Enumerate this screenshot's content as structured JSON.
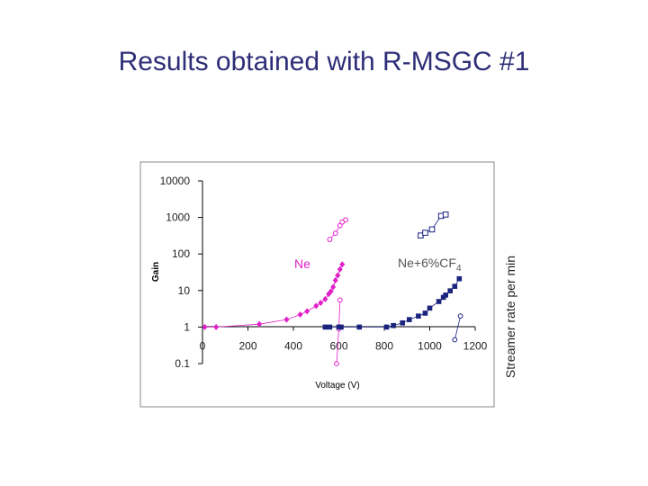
{
  "slide": {
    "title": "Results obtained with R-MSGC #1"
  },
  "chart_data": {
    "type": "scatter",
    "title": "",
    "xlabel": "Voltage (V)",
    "ylabel": "Gain",
    "ylabel_right": "Streamer rate per min",
    "x_ticks": [
      "0",
      "200",
      "400",
      "600",
      "800",
      "1000",
      "1200"
    ],
    "y_ticks": [
      "0.1",
      "1",
      "10",
      "100",
      "1000",
      "10000"
    ],
    "xlim": [
      0,
      1200
    ],
    "ylim": [
      0.1,
      10000
    ],
    "yscale": "log",
    "grid": false,
    "legend": "none",
    "annotations": [
      {
        "id": "ne",
        "text": "Ne"
      },
      {
        "id": "necf4",
        "text": "Ne+6%CF",
        "sub": "4"
      }
    ],
    "series": [
      {
        "gas": "Ne",
        "kind": "gain",
        "marker": "diamond",
        "color": "#e020c8",
        "x": [
          10,
          60,
          250,
          370,
          430,
          460,
          500,
          520,
          540,
          555,
          565,
          575,
          585,
          595,
          605,
          615
        ],
        "y": [
          1.0,
          1.0,
          1.2,
          1.6,
          2.2,
          2.7,
          3.8,
          4.6,
          5.8,
          8.0,
          9.5,
          12.5,
          19,
          26,
          38,
          52
        ]
      },
      {
        "gas": "Ne",
        "kind": "streamer",
        "marker": "circle-open",
        "color": "#e020c8",
        "x": [
          590,
          600,
          605
        ],
        "y": [
          0.1,
          0.9,
          5.5
        ]
      },
      {
        "gas": "Ne",
        "kind": "gain-high",
        "marker": "circle-open",
        "color": "#e020c8",
        "x": [
          560,
          585,
          605,
          615,
          630
        ],
        "y": [
          250,
          370,
          600,
          750,
          860
        ]
      },
      {
        "gas": "Ne+6%CF4",
        "kind": "gain",
        "marker": "square-filled",
        "color": "#1a237e",
        "x": [
          540,
          560,
          600,
          610,
          690,
          810,
          840,
          880,
          910,
          950,
          980,
          1000,
          1040,
          1060,
          1070,
          1090,
          1110,
          1130
        ],
        "y": [
          1,
          1,
          1,
          1,
          1,
          1,
          1.1,
          1.3,
          1.6,
          2.0,
          2.4,
          3.3,
          5.0,
          6.5,
          7.5,
          9.8,
          13,
          21
        ]
      },
      {
        "gas": "Ne+6%CF4",
        "kind": "streamer",
        "marker": "circle-open",
        "color": "#1a237e",
        "x": [
          1110,
          1135
        ],
        "y": [
          0.45,
          2.0
        ]
      },
      {
        "gas": "Ne+6%CF4",
        "kind": "gain-high",
        "marker": "square-open",
        "color": "#1a237e",
        "x": [
          960,
          980,
          1010,
          1050,
          1070
        ],
        "y": [
          320,
          380,
          470,
          1100,
          1200
        ]
      }
    ]
  }
}
